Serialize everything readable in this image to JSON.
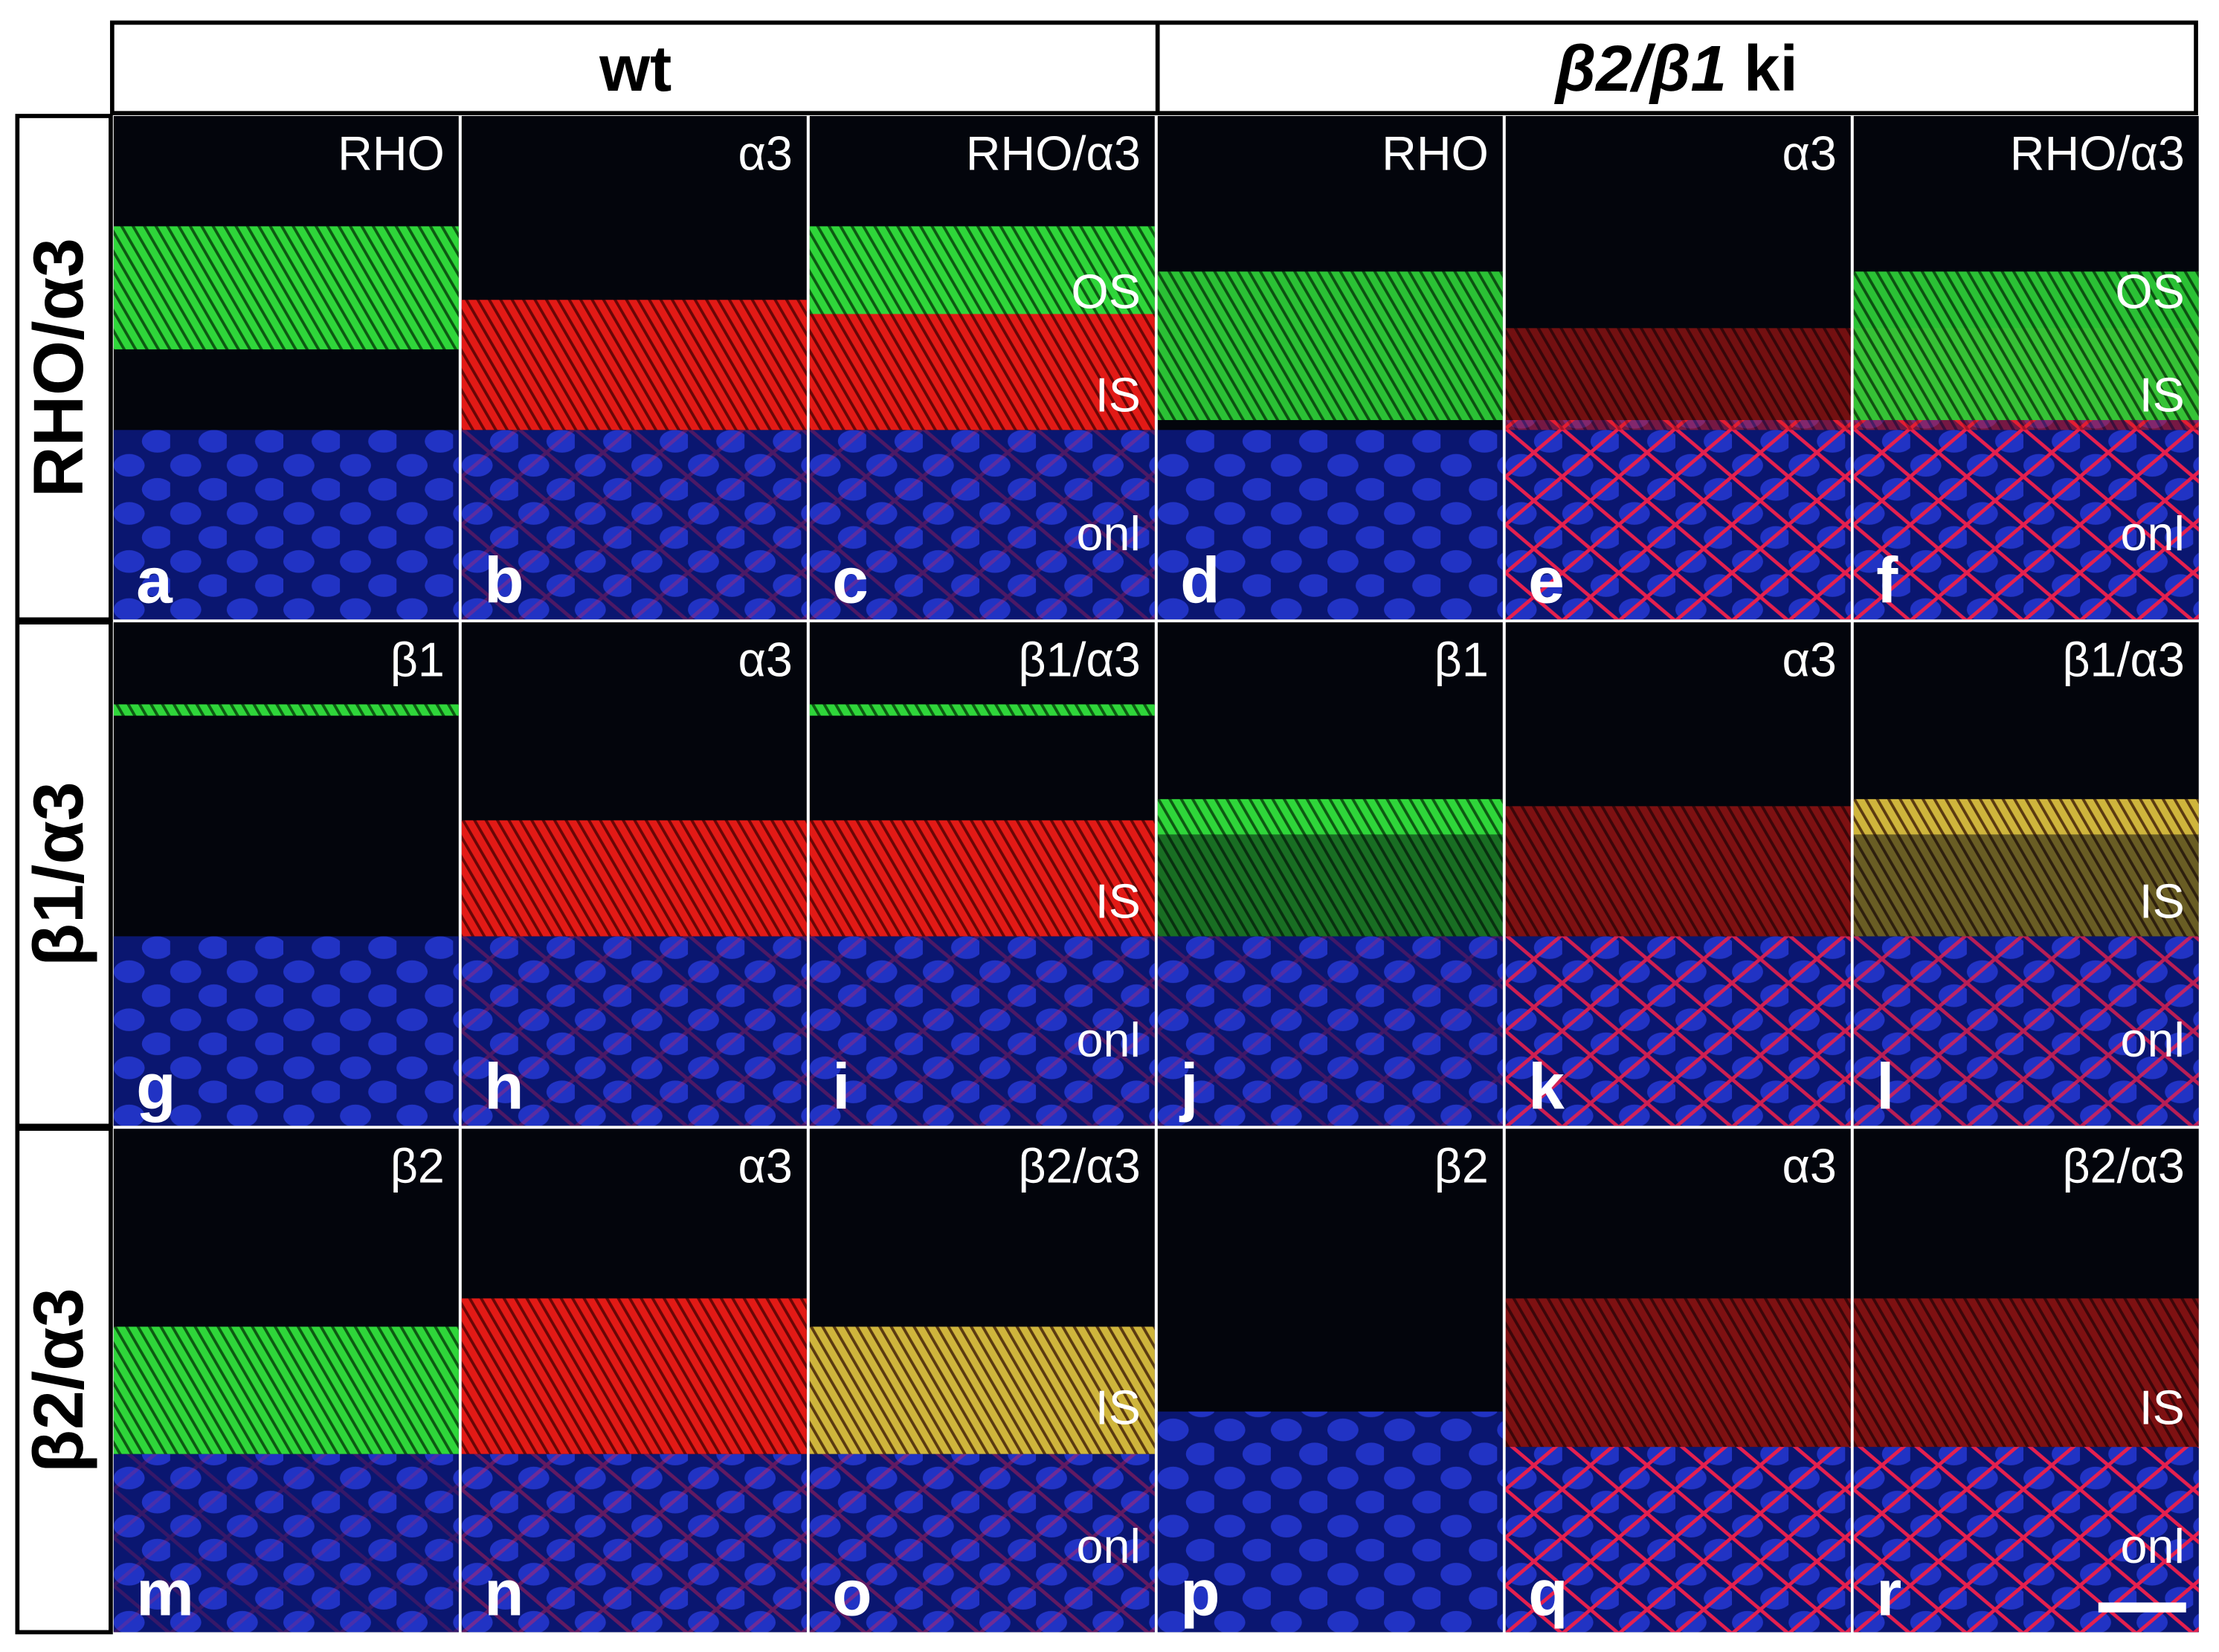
{
  "columns": [
    {
      "text": "wt"
    },
    {
      "italic": "β2/β1",
      "text": "ki"
    }
  ],
  "rows": [
    {
      "label": "RHO/α3",
      "panels": [
        {
          "letter": "a",
          "stain": "RHO",
          "layers": []
        },
        {
          "letter": "b",
          "stain": "α3",
          "layers": []
        },
        {
          "letter": "c",
          "stain": "RHO/α3",
          "layers": [
            "OS",
            "IS",
            "onl"
          ]
        },
        {
          "letter": "d",
          "stain": "RHO",
          "layers": []
        },
        {
          "letter": "e",
          "stain": "α3",
          "layers": []
        },
        {
          "letter": "f",
          "stain": "RHO/α3",
          "layers": [
            "OS",
            "IS",
            "onl"
          ]
        }
      ]
    },
    {
      "label": "β1/α3",
      "panels": [
        {
          "letter": "g",
          "stain": "β1",
          "layers": []
        },
        {
          "letter": "h",
          "stain": "α3",
          "layers": []
        },
        {
          "letter": "i",
          "stain": "β1/α3",
          "layers": [
            "IS",
            "onl"
          ]
        },
        {
          "letter": "j",
          "stain": "β1",
          "layers": []
        },
        {
          "letter": "k",
          "stain": "α3",
          "layers": []
        },
        {
          "letter": "l",
          "stain": "β1/α3",
          "layers": [
            "IS",
            "onl"
          ]
        }
      ]
    },
    {
      "label": "β2/α3",
      "panels": [
        {
          "letter": "m",
          "stain": "β2",
          "layers": []
        },
        {
          "letter": "n",
          "stain": "α3",
          "layers": []
        },
        {
          "letter": "o",
          "stain": "β2/α3",
          "layers": [
            "IS",
            "onl"
          ]
        },
        {
          "letter": "p",
          "stain": "β2",
          "layers": []
        },
        {
          "letter": "q",
          "stain": "α3",
          "layers": []
        },
        {
          "letter": "r",
          "stain": "β2/α3",
          "layers": [
            "IS",
            "onl"
          ]
        }
      ]
    }
  ]
}
